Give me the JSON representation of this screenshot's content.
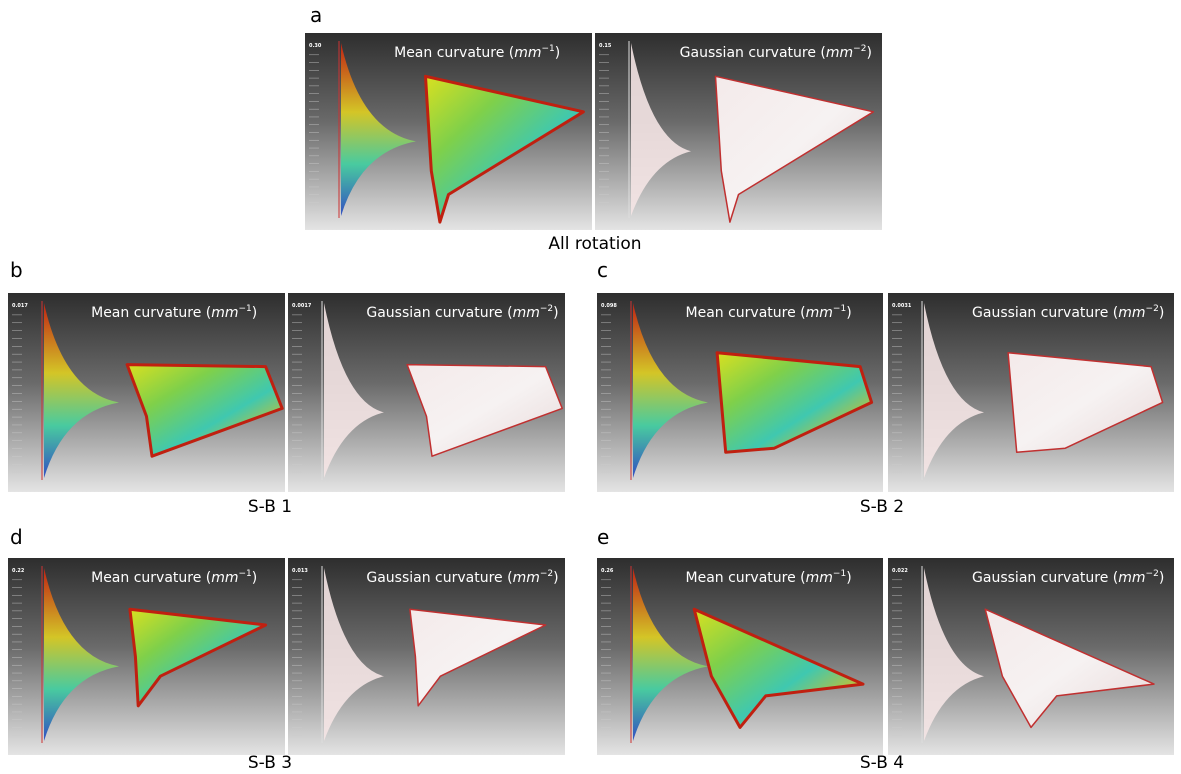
{
  "panels": [
    {
      "label": "a",
      "caption": "All rotation",
      "images": [
        {
          "title": "Mean curvature (",
          "unit": "mm",
          "exponent": "−1",
          "close": ")",
          "scale_top": "0.30"
        },
        {
          "title": "Gaussian curvature (",
          "unit": "mm",
          "exponent": "−2",
          "close": ")",
          "scale_top": "0.15"
        }
      ]
    },
    {
      "label": "b",
      "caption": "S-B 1",
      "images": [
        {
          "title": "Mean curvature (",
          "unit": "mm",
          "exponent": "−1",
          "close": ")",
          "scale_top": "0.017"
        },
        {
          "title": "Gaussian curvature (",
          "unit": "mm",
          "exponent": "−2",
          "close": ")",
          "scale_top": "0.0017"
        }
      ]
    },
    {
      "label": "c",
      "caption": "S-B 2",
      "images": [
        {
          "title": "Mean curvature (",
          "unit": "mm",
          "exponent": "−1",
          "close": ")",
          "scale_top": "0.098"
        },
        {
          "title": "Gaussian curvature (",
          "unit": "mm",
          "exponent": "−2",
          "close": ")",
          "scale_top": "0.0031"
        }
      ]
    },
    {
      "label": "d",
      "caption": "S-B 3",
      "images": [
        {
          "title": "Mean curvature (",
          "unit": "mm",
          "exponent": "−1",
          "close": ")",
          "scale_top": "0.22"
        },
        {
          "title": "Gaussian curvature (",
          "unit": "mm",
          "exponent": "−2",
          "close": ")",
          "scale_top": "0.013"
        }
      ]
    },
    {
      "label": "e",
      "caption": "S-B 4",
      "images": [
        {
          "title": "Mean curvature (",
          "unit": "mm",
          "exponent": "−1",
          "close": ")",
          "scale_top": "0.26"
        },
        {
          "title": "Gaussian curvature (",
          "unit": "mm",
          "exponent": "−2",
          "close": ")",
          "scale_top": "0.022"
        }
      ]
    }
  ]
}
